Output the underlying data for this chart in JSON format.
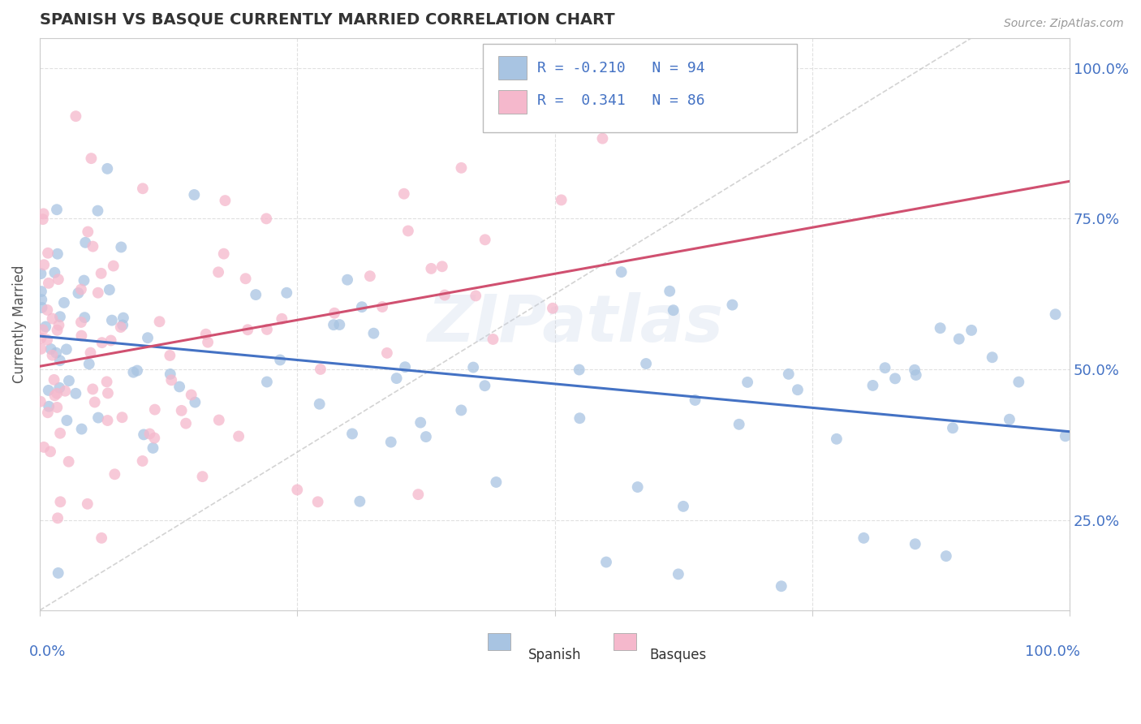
{
  "title": "SPANISH VS BASQUE CURRENTLY MARRIED CORRELATION CHART",
  "source_text": "Source: ZipAtlas.com",
  "ylabel": "Currently Married",
  "right_yticklabels": [
    "25.0%",
    "50.0%",
    "75.0%",
    "100.0%"
  ],
  "right_ytick_vals": [
    0.25,
    0.5,
    0.75,
    1.0
  ],
  "watermark": "ZIPatlas",
  "legend_r1": "R = -0.210   N = 94",
  "legend_r2": "R =  0.341   N = 86",
  "color_spanish": "#a8c4e2",
  "color_basque": "#f5b8cc",
  "color_spanish_line": "#4472c4",
  "color_basque_line": "#d05070",
  "color_diag": "#c8c8c8",
  "background_color": "#ffffff",
  "grid_color": "#e0e0e0",
  "ylim_min": 0.1,
  "ylim_max": 1.05,
  "xlim_min": 0.0,
  "xlim_max": 1.0
}
